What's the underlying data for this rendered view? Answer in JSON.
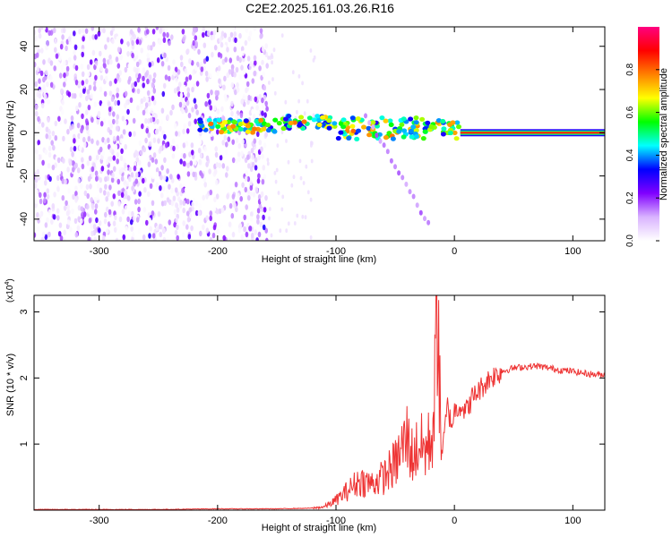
{
  "figure": {
    "title": "C2E2.2025.161.03.26.R16"
  },
  "chart_data": [
    {
      "type": "heatmap",
      "title": "C2E2.2025.161.03.26.R16",
      "xlabel": "Height of straight line (km)",
      "ylabel": "Frequency (Hz)",
      "xlim": [
        -355,
        127
      ],
      "ylim": [
        -50,
        49
      ],
      "xticks": [
        -300,
        -200,
        -100,
        0,
        100
      ],
      "yticks": [
        -40,
        -20,
        0,
        20,
        40
      ],
      "colorbar": {
        "label": "Normalized spectral amplitude",
        "range": [
          0.0,
          1.0
        ],
        "ticks": [
          0.0,
          0.2,
          0.4,
          0.6,
          0.8
        ],
        "colormap": [
          "#ffffff",
          "#d9b3ff",
          "#8000ff",
          "#0000ff",
          "#00ffff",
          "#00ff00",
          "#ffff00",
          "#ff8000",
          "#ff0000",
          "#ff0080"
        ]
      },
      "features": [
        {
          "name": "noise region",
          "x_range": [
            -355,
            -158
          ],
          "freq_range": [
            -50,
            49
          ],
          "amplitude": 0.1
        },
        {
          "name": "main echo",
          "x_range": [
            -215,
            5
          ],
          "freq_range": [
            -4,
            10
          ],
          "amplitude": 0.5
        },
        {
          "name": "descending branch",
          "x_range": [
            -75,
            -22
          ],
          "freq": [
            8,
            -42
          ]
        },
        {
          "name": "constant line",
          "x_range": [
            5,
            127
          ],
          "freq": 0,
          "amplitude": 0.85
        }
      ]
    },
    {
      "type": "line",
      "xlabel": "Height of straight line (km)",
      "ylabel": "SNR (10 * v/v)",
      "y_scale_label": "(x10",
      "y_scale_exp": "4",
      "xlim": [
        -355,
        127
      ],
      "ylim": [
        0,
        3.25
      ],
      "xticks": [
        -300,
        -200,
        -100,
        0,
        100
      ],
      "yticks": [
        1,
        2,
        3
      ],
      "color": "#ee3333",
      "series": [
        {
          "x": [
            -355,
            -300,
            -250,
            -200,
            -150,
            -120,
            -110,
            -100,
            -90,
            -80,
            -70,
            -60,
            -50,
            -45,
            -40,
            -35,
            -30,
            -25,
            -20,
            -17,
            -14,
            -12,
            -10,
            -8,
            -6,
            -4,
            -2,
            0,
            5,
            10,
            15,
            20,
            30,
            40,
            50,
            60,
            70,
            80,
            90,
            100,
            110,
            120,
            127
          ],
          "y": [
            0.01,
            0.01,
            0.01,
            0.02,
            0.02,
            0.03,
            0.05,
            0.15,
            0.3,
            0.45,
            0.4,
            0.5,
            0.7,
            0.9,
            1.1,
            0.8,
            1.0,
            0.9,
            1.05,
            1.5,
            3.25,
            1.3,
            0.9,
            1.2,
            1.6,
            1.4,
            1.3,
            1.5,
            1.6,
            1.5,
            1.7,
            1.8,
            2.0,
            2.1,
            2.15,
            2.17,
            2.18,
            2.15,
            2.12,
            2.1,
            2.07,
            2.05,
            2.05
          ]
        }
      ]
    }
  ]
}
